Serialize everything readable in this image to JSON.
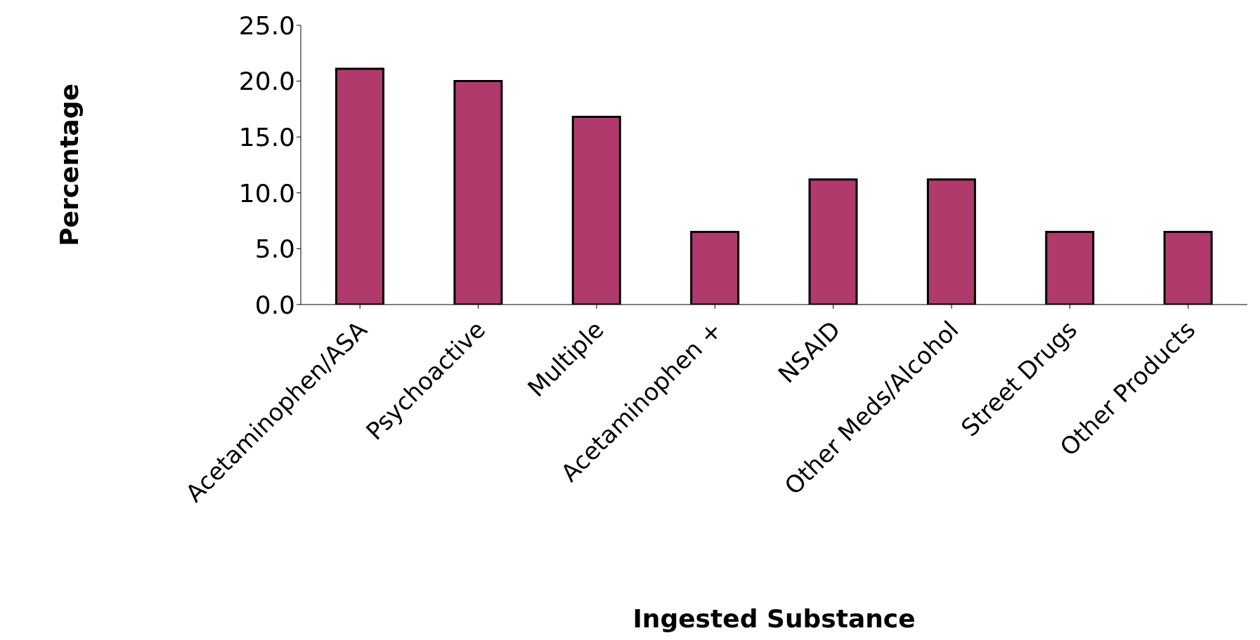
{
  "chart_data": {
    "type": "bar",
    "xlabel": "Ingested Substance",
    "ylabel": "Percentage",
    "categories": [
      "Acetaminophen/ASA",
      "Psychoactive",
      "Multiple",
      "Acetaminophen +",
      "NSAID",
      "Other Meds/Alcohol",
      "Street Drugs",
      "Other Products"
    ],
    "values": [
      21.1,
      20.0,
      16.8,
      6.5,
      11.2,
      11.2,
      6.5,
      6.5
    ],
    "color": "#b03a6c",
    "ylim": [
      0,
      25
    ],
    "yticks": [
      {
        "value": 0,
        "label": "0.0"
      },
      {
        "value": 5,
        "label": "5.0"
      },
      {
        "value": 10,
        "label": "10.0"
      },
      {
        "value": 15,
        "label": "15.0"
      },
      {
        "value": 20,
        "label": "20.0"
      },
      {
        "value": 25,
        "label": "25.0"
      }
    ],
    "grid": false
  }
}
